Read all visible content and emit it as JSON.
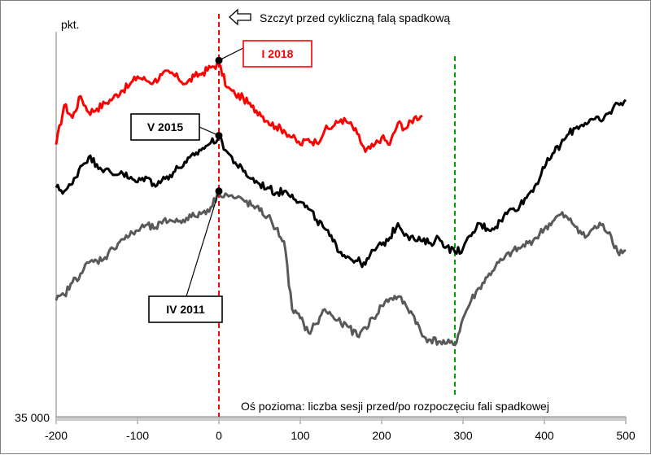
{
  "chart_data": {
    "type": "line",
    "title": "",
    "ylabel": "pkt.",
    "xlabel": "Oś pozioma: liczba sesji przed/po rozpoczęciu fali spadkowej",
    "xlim": [
      -200,
      500
    ],
    "x_ticks": [
      -200,
      -100,
      0,
      100,
      200,
      300,
      400,
      500
    ],
    "x_tick_labels": [
      "-200",
      "-100",
      "0",
      "100",
      "200",
      "300",
      "400",
      "500"
    ],
    "y_tick_labels": [
      "35 000"
    ],
    "grid": false,
    "legend": "none",
    "series": [
      {
        "name": "I 2018",
        "color": "#ff0000",
        "x": [
          -200,
          -190,
          -180,
          -170,
          -160,
          -150,
          -140,
          -130,
          -120,
          -110,
          -100,
          -90,
          -80,
          -70,
          -60,
          -50,
          -40,
          -30,
          -20,
          -10,
          0,
          10,
          20,
          30,
          40,
          50,
          60,
          70,
          80,
          90,
          100,
          110,
          120,
          130,
          140,
          150,
          160,
          170,
          180,
          190,
          200,
          210,
          220,
          230,
          240,
          250
        ],
        "y": [
          36520,
          36740,
          36670,
          36790,
          36700,
          36720,
          36750,
          36780,
          36820,
          36850,
          36900,
          36880,
          36870,
          36910,
          36920,
          36890,
          36860,
          36900,
          36920,
          36950,
          36970,
          36840,
          36800,
          36780,
          36730,
          36700,
          36650,
          36620,
          36600,
          36560,
          36520,
          36550,
          36530,
          36600,
          36620,
          36660,
          36640,
          36580,
          36480,
          36510,
          36560,
          36520,
          36640,
          36610,
          36670,
          36680
        ]
      },
      {
        "name": "V 2015",
        "color": "#000000",
        "x": [
          -200,
          -190,
          -180,
          -170,
          -160,
          -150,
          -140,
          -130,
          -120,
          -110,
          -100,
          -90,
          -80,
          -70,
          -60,
          -50,
          -40,
          -30,
          -20,
          -10,
          0,
          10,
          20,
          30,
          40,
          50,
          60,
          70,
          80,
          90,
          100,
          110,
          120,
          130,
          140,
          150,
          160,
          170,
          180,
          190,
          200,
          210,
          220,
          230,
          240,
          250,
          260,
          270,
          280,
          290,
          300,
          310,
          320,
          330,
          340,
          350,
          360,
          370,
          380,
          390,
          400,
          410,
          420,
          430,
          440,
          450,
          460,
          470,
          480,
          490,
          500
        ],
        "y": [
          36280,
          36260,
          36300,
          36400,
          36450,
          36410,
          36380,
          36350,
          36370,
          36330,
          36310,
          36340,
          36300,
          36320,
          36350,
          36390,
          36420,
          36460,
          36500,
          36530,
          36560,
          36480,
          36420,
          36370,
          36330,
          36300,
          36280,
          36250,
          36260,
          36240,
          36200,
          36160,
          36100,
          36050,
          35980,
          35920,
          35890,
          35870,
          35850,
          35930,
          35960,
          36000,
          36080,
          36020,
          35990,
          35980,
          35970,
          36000,
          35950,
          35920,
          35940,
          36010,
          36080,
          36050,
          36060,
          36120,
          36160,
          36180,
          36240,
          36300,
          36390,
          36470,
          36520,
          36580,
          36620,
          36640,
          36660,
          36650,
          36700,
          36750,
          36770
        ]
      },
      {
        "name": "IV 2011",
        "color": "#595959",
        "x": [
          -200,
          -190,
          -180,
          -170,
          -160,
          -150,
          -140,
          -130,
          -120,
          -110,
          -100,
          -90,
          -80,
          -70,
          -60,
          -50,
          -40,
          -30,
          -20,
          -10,
          0,
          10,
          20,
          30,
          40,
          50,
          60,
          70,
          80,
          90,
          100,
          110,
          120,
          130,
          140,
          150,
          160,
          170,
          180,
          190,
          200,
          210,
          220,
          230,
          240,
          250,
          260,
          270,
          280,
          290,
          300,
          310,
          320,
          330,
          340,
          350,
          360,
          370,
          380,
          390,
          400,
          410,
          420,
          430,
          440,
          450,
          460,
          470,
          480,
          490,
          500
        ],
        "y": [
          35650,
          35680,
          35750,
          35800,
          35860,
          35870,
          35890,
          35940,
          35990,
          36010,
          36040,
          36070,
          36050,
          36080,
          36100,
          36090,
          36110,
          36120,
          36140,
          36170,
          36250,
          36240,
          36220,
          36210,
          36180,
          36150,
          36120,
          36050,
          35980,
          35600,
          35550,
          35470,
          35520,
          35600,
          35560,
          35520,
          35500,
          35450,
          35500,
          35550,
          35620,
          35660,
          35670,
          35620,
          35560,
          35450,
          35430,
          35420,
          35410,
          35400,
          35550,
          35650,
          35720,
          35780,
          35840,
          35880,
          35920,
          35940,
          35970,
          36000,
          36050,
          36090,
          36130,
          36100,
          36060,
          36000,
          36050,
          36070,
          36030,
          35920,
          35930
        ]
      }
    ],
    "annotations": {
      "peak_line": {
        "x": 0,
        "color": "#ff0000",
        "style": "dashed"
      },
      "trough_line": {
        "x": 290,
        "color": "#00a000",
        "style": "dashed"
      },
      "note": "Szczyt przed cykliczną falą spadkową",
      "markers": [
        {
          "label": "I 2018",
          "x": 0,
          "y": 36990,
          "label_color": "#ff0000",
          "border_color": "#ff0000"
        },
        {
          "label": "V 2015",
          "x": 0,
          "y": 36570,
          "label_color": "#000000",
          "border_color": "#000000"
        },
        {
          "label": "IV 2011",
          "x": 0,
          "y": 36260,
          "label_color": "#000000",
          "border_color": "#000000"
        }
      ]
    }
  }
}
